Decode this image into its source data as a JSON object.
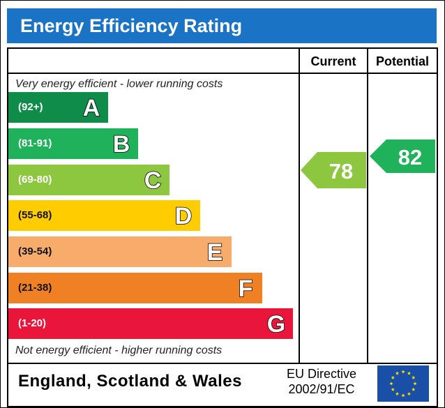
{
  "title": "Energy Efficiency Rating",
  "columns": {
    "current": "Current",
    "potential": "Potential"
  },
  "notes": {
    "top": "Very energy efficient - lower running costs",
    "bottom": "Not energy efficient - higher running costs"
  },
  "footer": {
    "region": "England, Scotland & Wales",
    "directive_line1": "EU Directive",
    "directive_line2": "2002/91/EC"
  },
  "colors": {
    "title_bg": "#1a73c4",
    "A": "#0f8c4a",
    "B": "#1fb25a",
    "C": "#8dc63f",
    "D": "#ffcc00",
    "E": "#f7ac6b",
    "F": "#ef8023",
    "G": "#e9153b",
    "current_arrow": "#8dc63f",
    "potential_arrow": "#1fb25a"
  },
  "chart_data": {
    "type": "bar",
    "bands": [
      {
        "letter": "A",
        "range": "(92+)"
      },
      {
        "letter": "B",
        "range": "(81-91)"
      },
      {
        "letter": "C",
        "range": "(69-80)"
      },
      {
        "letter": "D",
        "range": "(55-68)"
      },
      {
        "letter": "E",
        "range": "(39-54)"
      },
      {
        "letter": "F",
        "range": "(21-38)"
      },
      {
        "letter": "G",
        "range": "(1-20)"
      }
    ],
    "current": {
      "value": 78,
      "band": "C"
    },
    "potential": {
      "value": 82,
      "band": "B"
    }
  }
}
